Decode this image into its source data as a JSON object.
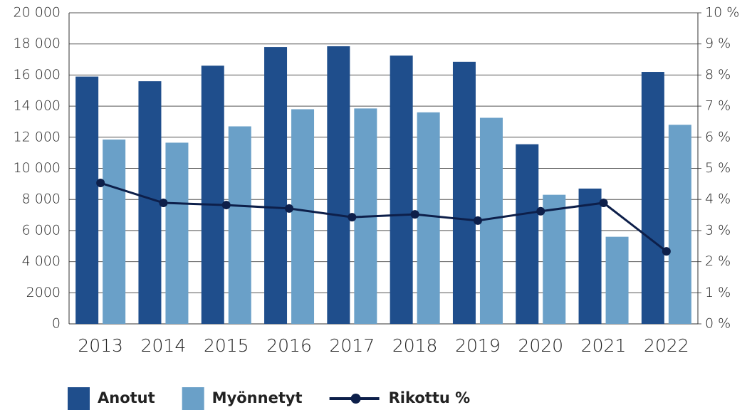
{
  "chart_data": {
    "type": "bar",
    "categories": [
      "2013",
      "2014",
      "2015",
      "2016",
      "2017",
      "2018",
      "2019",
      "2020",
      "2021",
      "2022"
    ],
    "series": [
      {
        "name": "Anotut",
        "color": "#1f4e8c",
        "values": [
          15900,
          15600,
          16600,
          17800,
          17850,
          17250,
          16850,
          11550,
          8700,
          16200
        ]
      },
      {
        "name": "Myönnetyt",
        "color": "#6aa0c8",
        "values": [
          11850,
          11650,
          12700,
          13800,
          13850,
          13600,
          13250,
          8300,
          5600,
          12800
        ]
      },
      {
        "name": "Rikottu %",
        "color": "#0d1f4a",
        "type": "line",
        "axis": "y2",
        "values": [
          4.53,
          3.89,
          3.82,
          3.71,
          3.43,
          3.52,
          3.32,
          3.62,
          3.89,
          2.33
        ]
      }
    ],
    "ylim": [
      0,
      20000
    ],
    "yticks": [
      0,
      2000,
      {
        "value": 4000,
        "label": "4 000"
      },
      {
        "value": 6000,
        "label": "6 000"
      },
      {
        "value": 8000,
        "label": "8 000"
      },
      {
        "value": 10000,
        "label": "10 000"
      },
      {
        "value": 12000,
        "label": "12 000"
      },
      {
        "value": 14000,
        "label": "14 000"
      },
      {
        "value": 16000,
        "label": "16 000"
      },
      {
        "value": 18000,
        "label": "18 000"
      },
      {
        "value": 20000,
        "label": "20 000"
      }
    ],
    "y2lim": [
      0,
      10
    ],
    "y2ticks": [
      {
        "value": 0,
        "label": "0 %"
      },
      {
        "value": 1,
        "label": "1 %"
      },
      {
        "value": 2,
        "label": "2 %"
      },
      {
        "value": 3,
        "label": "3 %"
      },
      {
        "value": 4,
        "label": "4 %"
      },
      {
        "value": 5,
        "label": "5 %"
      },
      {
        "value": 6,
        "label": "6 %"
      },
      {
        "value": 7,
        "label": "7 %"
      },
      {
        "value": 8,
        "label": "8 %"
      },
      {
        "value": 9,
        "label": "9 %"
      },
      {
        "value": 10,
        "label": "10 %"
      }
    ],
    "grid": true,
    "legend": "bottom"
  }
}
